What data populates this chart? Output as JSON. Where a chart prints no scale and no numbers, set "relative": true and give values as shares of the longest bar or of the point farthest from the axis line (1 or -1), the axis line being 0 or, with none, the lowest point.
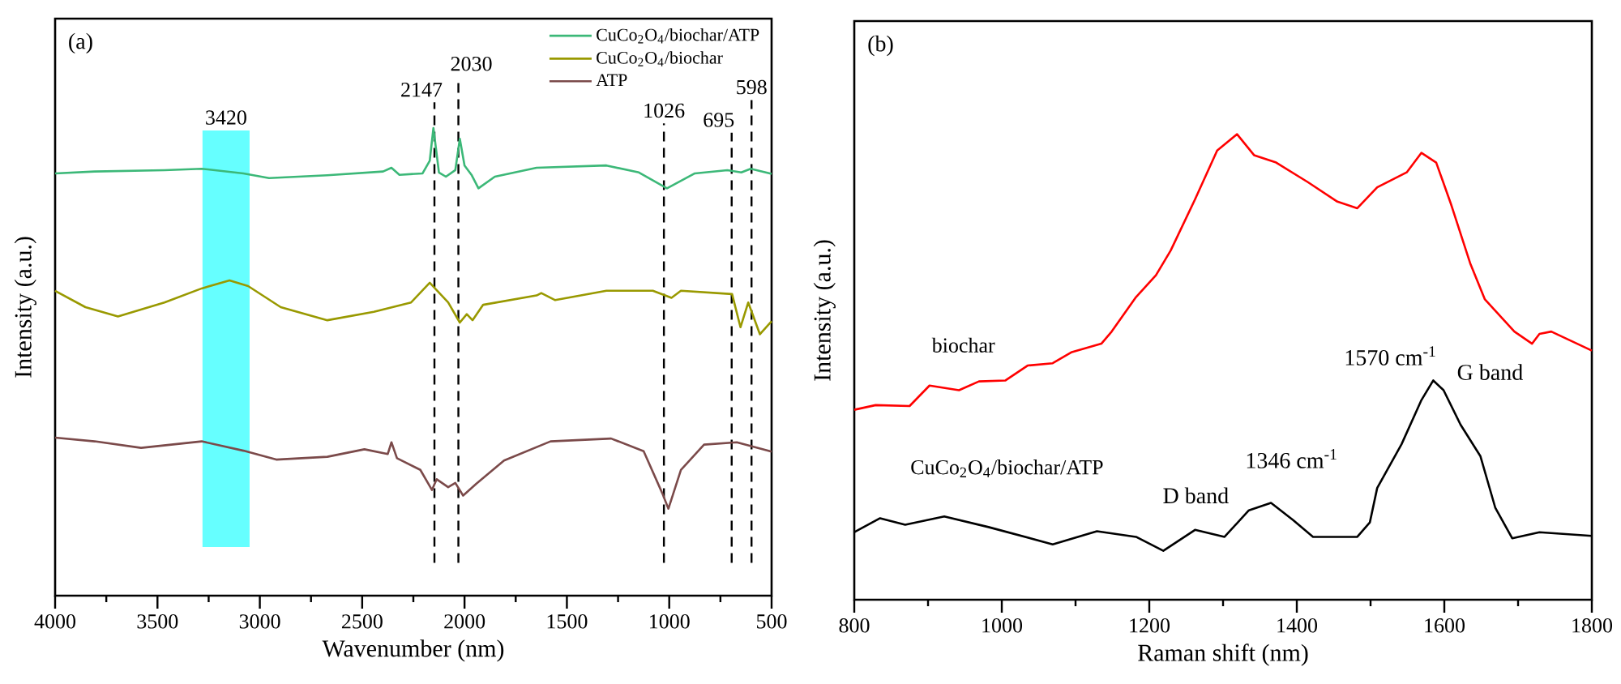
{
  "chart_data": [
    {
      "type": "line",
      "title": "(a)",
      "xlabel": "Wavenumber (nm)",
      "ylabel": "Intensity (a.u.)",
      "relative": true,
      "xlim": [
        4000,
        500
      ],
      "xticks": [
        4000,
        3500,
        3000,
        2500,
        2000,
        1500,
        1000,
        500
      ],
      "tick_labels": "x",
      "legend": "top right",
      "series": [
        {
          "name": "CuCo$_{2}$O$_{4}$/biochar/ATP",
          "color": "#3cb878",
          "x": [
            4000,
            3807,
            3466,
            3284,
            3080,
            2955,
            2670,
            2398,
            2357,
            2318,
            2205,
            2170,
            2152,
            2125,
            2091,
            2045,
            2023,
            2000,
            1966,
            1932,
            1852,
            1648,
            1307,
            1148,
            1011,
            875,
            716,
            648,
            602,
            500
          ],
          "values": [
            0.903,
            0.907,
            0.91,
            0.913,
            0.903,
            0.893,
            0.899,
            0.907,
            0.915,
            0.9,
            0.903,
            0.93,
            1.0,
            0.905,
            0.896,
            0.91,
            0.977,
            0.92,
            0.9,
            0.871,
            0.896,
            0.915,
            0.92,
            0.905,
            0.871,
            0.903,
            0.91,
            0.905,
            0.913,
            0.902
          ]
        },
        {
          "name": "CuCo$_{2}$O$_{4}$/biochar",
          "color": "#999900",
          "x": [
            4000,
            3852,
            3693,
            3466,
            3284,
            3148,
            3057,
            2898,
            2670,
            2443,
            2261,
            2170,
            2080,
            2023,
            1989,
            1961,
            1909,
            1648,
            1625,
            1557,
            1307,
            1080,
            989,
            943,
            693,
            652,
            614,
            557,
            500
          ],
          "values": [
            0.652,
            0.617,
            0.597,
            0.627,
            0.657,
            0.674,
            0.662,
            0.617,
            0.589,
            0.607,
            0.627,
            0.669,
            0.627,
            0.584,
            0.602,
            0.589,
            0.622,
            0.642,
            0.647,
            0.632,
            0.652,
            0.652,
            0.637,
            0.652,
            0.645,
            0.574,
            0.627,
            0.559,
            0.587
          ]
        },
        {
          "name": "ATP",
          "color": "#7b4a4a",
          "x": [
            4000,
            3807,
            3580,
            3284,
            3080,
            2920,
            2670,
            2489,
            2375,
            2357,
            2330,
            2216,
            2159,
            2136,
            2080,
            2045,
            2007,
            1943,
            1807,
            1580,
            1284,
            1125,
            1034,
            1004,
            943,
            830,
            670,
            500
          ],
          "values": [
            0.338,
            0.33,
            0.316,
            0.33,
            0.31,
            0.291,
            0.297,
            0.313,
            0.303,
            0.328,
            0.294,
            0.269,
            0.226,
            0.249,
            0.232,
            0.241,
            0.214,
            0.239,
            0.289,
            0.33,
            0.336,
            0.309,
            0.219,
            0.186,
            0.269,
            0.323,
            0.328,
            0.308
          ]
        }
      ],
      "ref_lines": [
        {
          "axis": "x",
          "value": 2147,
          "label": "2147",
          "color": "#000000",
          "line_style": "dashed"
        },
        {
          "axis": "x",
          "value": 2030,
          "label": "2030",
          "color": "#000000",
          "line_style": "dashed"
        },
        {
          "axis": "x",
          "value": 1026,
          "label": "1026",
          "color": "#000000",
          "line_style": "dashed"
        },
        {
          "axis": "x",
          "value": 695,
          "label": "695",
          "color": "#000000",
          "line_style": "dashed"
        },
        {
          "axis": "x",
          "value": 598,
          "label": "598",
          "color": "#000000",
          "line_style": "dashed"
        }
      ],
      "bands": [
        {
          "axis": "x",
          "from": 3280,
          "to": 3050,
          "label": "3420",
          "color": "#66ffff"
        }
      ]
    },
    {
      "type": "line",
      "title": "(b)",
      "xlabel": "Raman shift (nm)",
      "ylabel": "Intensity (a.u.)",
      "relative": true,
      "xlim": [
        800,
        1800
      ],
      "xticks": [
        800,
        1000,
        1200,
        1400,
        1600,
        1800
      ],
      "tick_labels": "x",
      "series": [
        {
          "name": "biochar",
          "color": "#ff0000",
          "x": [
            800,
            829,
            875,
            902,
            942,
            969,
            1005,
            1035,
            1069,
            1095,
            1135,
            1149,
            1182,
            1209,
            1229,
            1262,
            1292,
            1319,
            1342,
            1372,
            1415,
            1455,
            1482,
            1509,
            1549,
            1569,
            1589,
            1609,
            1635,
            1655,
            1695,
            1719,
            1729,
            1745,
            1800
          ],
          "values": [
            0.408,
            0.418,
            0.416,
            0.46,
            0.45,
            0.469,
            0.471,
            0.503,
            0.508,
            0.532,
            0.55,
            0.576,
            0.65,
            0.697,
            0.75,
            0.86,
            0.965,
            1.0,
            0.955,
            0.939,
            0.897,
            0.855,
            0.841,
            0.886,
            0.918,
            0.96,
            0.939,
            0.85,
            0.723,
            0.645,
            0.576,
            0.55,
            0.571,
            0.576,
            0.535
          ]
        },
        {
          "name": "CuCo$_{2}$O$_{4}$/biochar/ATP",
          "color": "#000000",
          "x": [
            800,
            835,
            869,
            922,
            982,
            1069,
            1129,
            1182,
            1219,
            1262,
            1302,
            1335,
            1365,
            1395,
            1422,
            1482,
            1499,
            1509,
            1542,
            1569,
            1585,
            1599,
            1622,
            1649,
            1669,
            1692,
            1729,
            1800
          ],
          "values": [
            0.145,
            0.175,
            0.161,
            0.179,
            0.156,
            0.119,
            0.147,
            0.135,
            0.105,
            0.15,
            0.135,
            0.192,
            0.208,
            0.171,
            0.135,
            0.135,
            0.166,
            0.24,
            0.334,
            0.429,
            0.471,
            0.45,
            0.376,
            0.308,
            0.198,
            0.132,
            0.145,
            0.137
          ]
        }
      ],
      "annotations": [
        "1570 cm$^{-1}$",
        "G band",
        "1346 cm$^{-1}$",
        "D band"
      ]
    }
  ]
}
